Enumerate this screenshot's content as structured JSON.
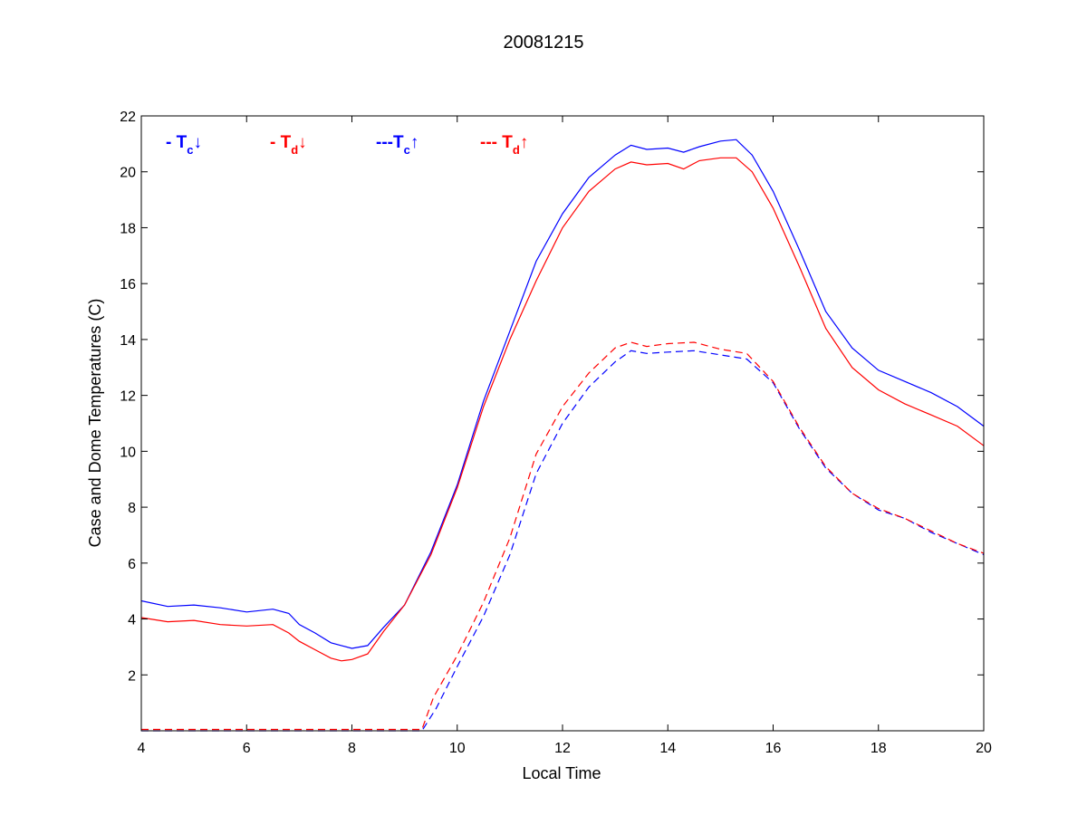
{
  "chart_data": {
    "type": "line",
    "title": "20081215",
    "xlabel": "Local Time",
    "ylabel": "Case and Dome Temperatures (C)",
    "xlim": [
      4,
      20
    ],
    "ylim": [
      0,
      22
    ],
    "xticks": [
      4,
      6,
      8,
      10,
      12,
      14,
      16,
      18,
      20
    ],
    "yticks": [
      2,
      4,
      6,
      8,
      10,
      12,
      14,
      16,
      18,
      20,
      22
    ],
    "grid": false,
    "legend_position": "top-left",
    "legend": [
      {
        "prefix": "- T",
        "sub": "c",
        "arrow": "↓",
        "color": "#0000ff"
      },
      {
        "prefix": "- T",
        "sub": "d",
        "arrow": "↓",
        "color": "#ff0000"
      },
      {
        "prefix": "---T",
        "sub": "c",
        "arrow": "↑",
        "color": "#0000ff"
      },
      {
        "prefix": "--- T",
        "sub": "d",
        "arrow": "↑",
        "color": "#ff0000"
      }
    ],
    "series": [
      {
        "color": "#0000ff",
        "dash": "solid",
        "x": [
          4.0,
          4.5,
          5.0,
          5.5,
          6.0,
          6.5,
          6.8,
          7.0,
          7.3,
          7.6,
          7.8,
          8.0,
          8.3,
          8.6,
          9.0,
          9.5,
          10.0,
          10.5,
          11.0,
          11.5,
          12.0,
          12.5,
          13.0,
          13.3,
          13.6,
          14.0,
          14.3,
          14.6,
          15.0,
          15.3,
          15.6,
          16.0,
          16.5,
          17.0,
          17.5,
          18.0,
          18.5,
          19.0,
          19.5,
          20.0
        ],
        "y": [
          4.65,
          4.45,
          4.5,
          4.4,
          4.25,
          4.35,
          4.2,
          3.8,
          3.5,
          3.15,
          3.05,
          2.95,
          3.05,
          3.7,
          4.5,
          6.4,
          8.8,
          11.8,
          14.3,
          16.8,
          18.5,
          19.8,
          20.6,
          20.95,
          20.8,
          20.85,
          20.7,
          20.9,
          21.1,
          21.15,
          20.6,
          19.3,
          17.2,
          15.0,
          13.7,
          12.9,
          12.5,
          12.1,
          11.6,
          10.9
        ]
      },
      {
        "color": "#ff0000",
        "dash": "solid",
        "x": [
          4.0,
          4.5,
          5.0,
          5.5,
          6.0,
          6.5,
          6.8,
          7.0,
          7.3,
          7.6,
          7.8,
          8.0,
          8.3,
          8.6,
          9.0,
          9.5,
          10.0,
          10.5,
          11.0,
          11.5,
          12.0,
          12.5,
          13.0,
          13.3,
          13.6,
          14.0,
          14.3,
          14.6,
          15.0,
          15.3,
          15.6,
          16.0,
          16.5,
          17.0,
          17.5,
          18.0,
          18.5,
          19.0,
          19.5,
          20.0
        ],
        "y": [
          4.05,
          3.9,
          3.95,
          3.8,
          3.75,
          3.8,
          3.5,
          3.2,
          2.9,
          2.6,
          2.5,
          2.55,
          2.75,
          3.55,
          4.5,
          6.3,
          8.7,
          11.6,
          14.0,
          16.1,
          18.0,
          19.3,
          20.1,
          20.35,
          20.25,
          20.3,
          20.1,
          20.4,
          20.5,
          20.5,
          20.0,
          18.7,
          16.6,
          14.4,
          13.0,
          12.2,
          11.7,
          11.3,
          10.9,
          10.2
        ]
      },
      {
        "color": "#0000ff",
        "dash": "dashed",
        "x": [
          4.0,
          6.0,
          8.0,
          9.0,
          9.33,
          9.6,
          10.0,
          10.5,
          11.0,
          11.5,
          12.0,
          12.5,
          13.0,
          13.3,
          13.6,
          14.0,
          14.5,
          15.0,
          15.5,
          16.0,
          16.5,
          17.0,
          17.5,
          18.0,
          18.5,
          19.0,
          19.5,
          20.0
        ],
        "y": [
          0.0,
          0.0,
          0.0,
          0.0,
          0.0,
          0.8,
          2.3,
          4.1,
          6.3,
          9.2,
          11.0,
          12.3,
          13.2,
          13.6,
          13.5,
          13.55,
          13.6,
          13.45,
          13.3,
          12.45,
          10.8,
          9.4,
          8.5,
          7.9,
          7.6,
          7.1,
          6.7,
          6.3
        ]
      },
      {
        "color": "#ff0000",
        "dash": "dashed",
        "x": [
          4.0,
          6.0,
          8.0,
          9.0,
          9.33,
          9.55,
          10.0,
          10.5,
          11.0,
          11.5,
          12.0,
          12.5,
          13.0,
          13.3,
          13.6,
          14.0,
          14.5,
          15.0,
          15.5,
          16.0,
          16.5,
          17.0,
          17.5,
          18.0,
          18.5,
          19.0,
          19.5,
          20.0
        ],
        "y": [
          0.05,
          0.05,
          0.05,
          0.05,
          0.05,
          1.2,
          2.7,
          4.6,
          6.9,
          9.9,
          11.6,
          12.8,
          13.7,
          13.9,
          13.75,
          13.85,
          13.9,
          13.65,
          13.5,
          12.5,
          10.85,
          9.45,
          8.5,
          7.95,
          7.6,
          7.15,
          6.7,
          6.35
        ]
      }
    ]
  }
}
